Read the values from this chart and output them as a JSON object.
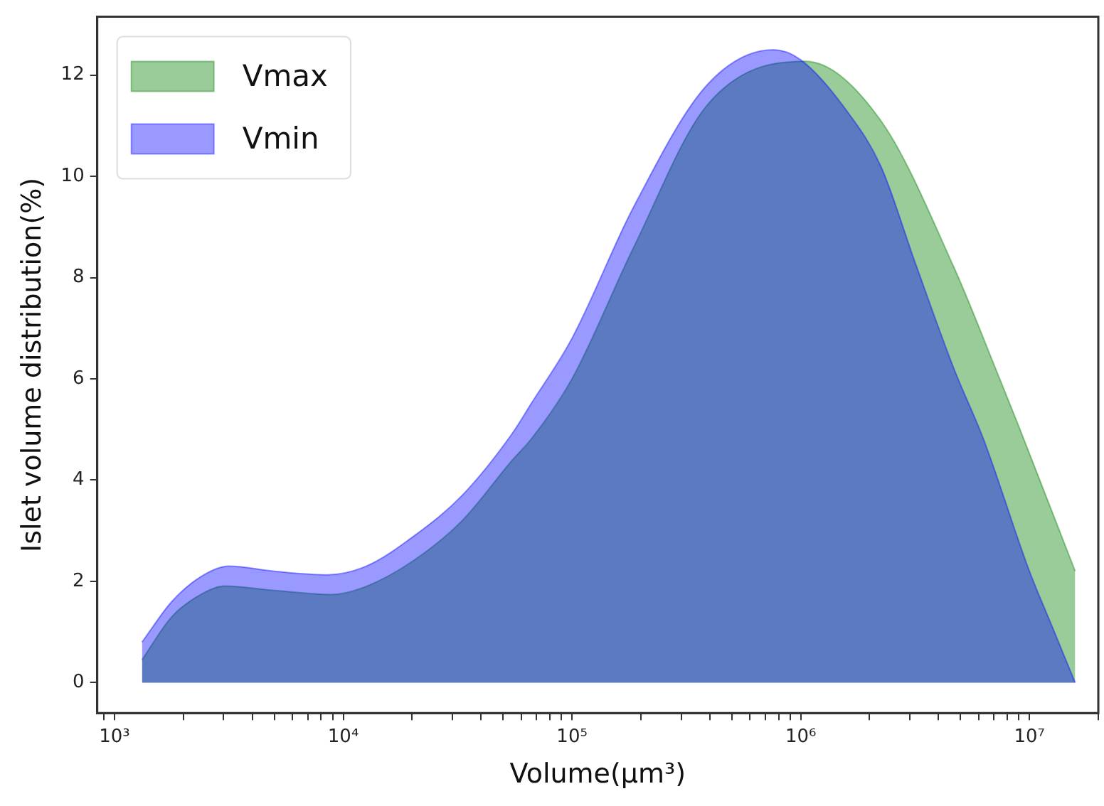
{
  "chart_data": {
    "type": "area",
    "xlabel": "Volume(μm³)",
    "ylabel": "Islet volume distribution(%)",
    "log": "x",
    "grid": false,
    "legend": "top left",
    "xlim": [
      840,
      20000000
    ],
    "ylim": [
      -0.6,
      13.15
    ],
    "xticks": [
      {
        "value": 900,
        "label": null
      },
      {
        "value": 1000,
        "label": "10³"
      },
      {
        "value": 2000,
        "label": null
      },
      {
        "value": 3000,
        "label": null
      },
      {
        "value": 4000,
        "label": null
      },
      {
        "value": 5000,
        "label": null
      },
      {
        "value": 6000,
        "label": null
      },
      {
        "value": 7000,
        "label": null
      },
      {
        "value": 8000,
        "label": null
      },
      {
        "value": 9000,
        "label": null
      },
      {
        "value": 10000,
        "label": "10⁴"
      },
      {
        "value": 20000,
        "label": null
      },
      {
        "value": 30000,
        "label": null
      },
      {
        "value": 40000,
        "label": null
      },
      {
        "value": 50000,
        "label": null
      },
      {
        "value": 60000,
        "label": null
      },
      {
        "value": 70000,
        "label": null
      },
      {
        "value": 80000,
        "label": null
      },
      {
        "value": 90000,
        "label": null
      },
      {
        "value": 100000,
        "label": "10⁵"
      },
      {
        "value": 200000,
        "label": null
      },
      {
        "value": 300000,
        "label": null
      },
      {
        "value": 400000,
        "label": null
      },
      {
        "value": 500000,
        "label": null
      },
      {
        "value": 600000,
        "label": null
      },
      {
        "value": 700000,
        "label": null
      },
      {
        "value": 800000,
        "label": null
      },
      {
        "value": 900000,
        "label": null
      },
      {
        "value": 1000000,
        "label": "10⁶"
      },
      {
        "value": 2000000,
        "label": null
      },
      {
        "value": 3000000,
        "label": null
      },
      {
        "value": 4000000,
        "label": null
      },
      {
        "value": 5000000,
        "label": null
      },
      {
        "value": 6000000,
        "label": null
      },
      {
        "value": 7000000,
        "label": null
      },
      {
        "value": 8000000,
        "label": null
      },
      {
        "value": 9000000,
        "label": null
      },
      {
        "value": 10000000,
        "label": "10⁷"
      },
      {
        "value": 20000000,
        "label": null
      }
    ],
    "yticks": [
      0,
      2,
      4,
      6,
      8,
      10,
      12
    ],
    "series": [
      {
        "name": "Vmax",
        "color": "#008000",
        "x": [
          1318,
          1778,
          2399,
          3020,
          5012,
          8913,
          12590,
          20420,
          33110,
          54950,
          66070,
          100000,
          186200,
          389000,
          1047000,
          2239000,
          4677000,
          7413000,
          8913000,
          15850000
        ],
        "values": [
          0.45,
          1.3,
          1.75,
          1.91,
          1.82,
          1.74,
          1.9,
          2.42,
          3.2,
          4.4,
          4.8,
          6.0,
          8.6,
          11.4,
          12.27,
          11.1,
          8.2,
          6.0,
          5.1,
          2.2
        ]
      },
      {
        "name": "Vmin",
        "color": "#0000ff",
        "x": [
          1318,
          1778,
          2399,
          3162,
          5012,
          8511,
          12590,
          20420,
          33110,
          54950,
          66070,
          100000,
          186200,
          389000,
          758600,
          1000000,
          1585000,
          2239000,
          3162000,
          4677000,
          6310000,
          10000000,
          12590000,
          15850000
        ],
        "values": [
          0.8,
          1.6,
          2.1,
          2.3,
          2.2,
          2.13,
          2.3,
          2.9,
          3.7,
          4.93,
          5.5,
          6.8,
          9.4,
          11.8,
          12.5,
          12.3,
          11.3,
          10.2,
          8.3,
          6.2,
          4.8,
          2.2,
          1.1,
          0
        ]
      }
    ]
  }
}
